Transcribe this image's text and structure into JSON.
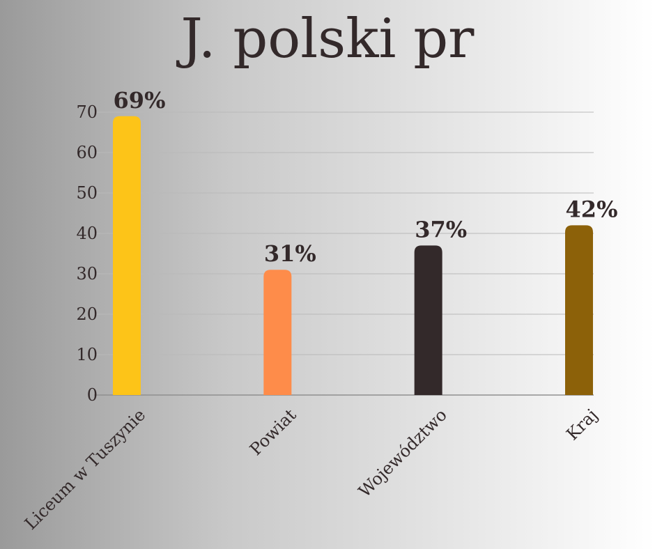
{
  "chart_data": {
    "type": "bar",
    "title": "J. polski pr",
    "xlabel": "",
    "ylabel": "",
    "categories": [
      "Liceum w Tuszynie",
      "Powiat",
      "Województwo",
      "Kraj"
    ],
    "values": [
      69,
      31,
      37,
      42
    ],
    "data_labels": [
      "69%",
      "31%",
      "37%",
      "42%"
    ],
    "colors": [
      "#fdc418",
      "#fe8c4a",
      "#33292a",
      "#8c6109"
    ],
    "ylim": [
      0,
      70
    ],
    "yticks": [
      0,
      10,
      20,
      30,
      40,
      50,
      60,
      70
    ],
    "grid": true,
    "legend": "none"
  }
}
